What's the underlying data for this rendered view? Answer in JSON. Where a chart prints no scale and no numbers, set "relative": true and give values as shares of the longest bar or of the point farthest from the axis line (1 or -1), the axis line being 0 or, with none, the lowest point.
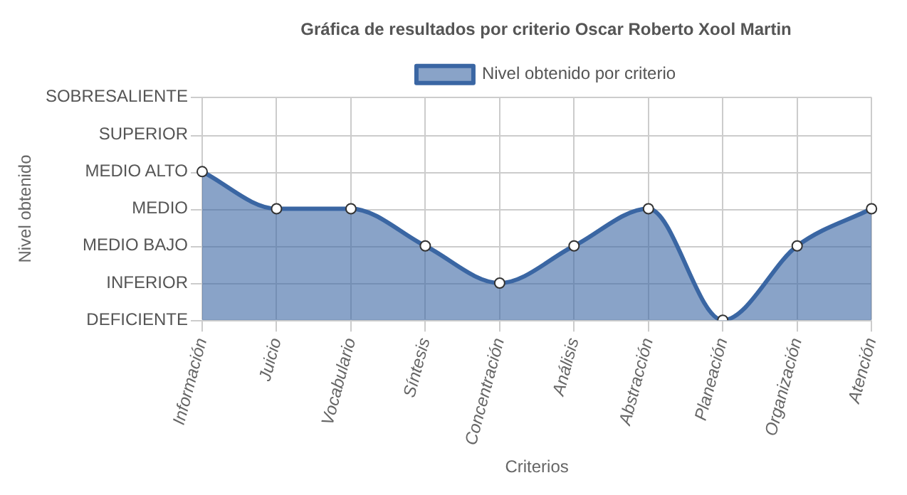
{
  "chart_data": {
    "type": "area",
    "title": "Gráfica de resultados por criterio Oscar Roberto Xool Martin",
    "xlabel": "Criterios",
    "relative": true,
    "categories": [
      "Información",
      "Juicio",
      "Vocabulario",
      "Síntesis",
      "Concentración",
      "Análisis",
      "Abstracción",
      "Planeación",
      "Organización",
      "Atención"
    ],
    "series": [
      {
        "name": "Nivel obtenido por criterio",
        "color": "#3a66a3",
        "values": [
          1,
          0.75,
          0.75,
          0.5,
          0.25,
          0.5,
          0.75,
          0,
          0.5,
          0.75
        ]
      }
    ],
    "annotations": [
      "Nivel obtenido",
      "DEFICIENTE",
      "INFERIOR",
      "MEDIO BAJO",
      "MEDIO",
      "MEDIO ALTO",
      "SUPERIOR",
      "SOBRESALIENTE"
    ],
    "grid": true,
    "legend": "top",
    "marker": "circle"
  }
}
